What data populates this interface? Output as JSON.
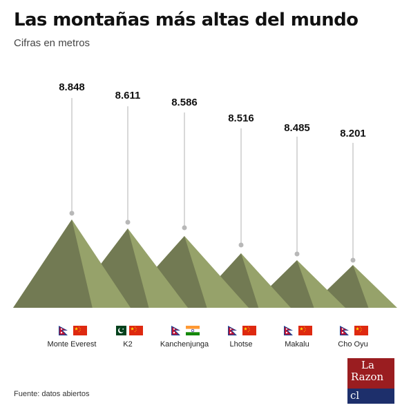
{
  "title": "Las montañas más altas del mundo",
  "subtitle": "Cifras en metros",
  "source": "Fuente: datos abiertos",
  "logo": {
    "line1": "La",
    "line2": "Razon",
    "line3": "cl"
  },
  "colors": {
    "mountain_light": "#96a26a",
    "mountain_dark": "#727a53",
    "stem": "#c8c8c8",
    "dot": "#b8b8b8",
    "logo_red": "#9a1d20",
    "logo_blue": "#1d2f6b"
  },
  "chart_data": {
    "type": "bar",
    "title": "Las montañas más altas del mundo",
    "subtitle": "Cifras en metros",
    "unit": "metros",
    "categories": [
      "Monte Everest",
      "K2",
      "Kanchenjunga",
      "Lhotse",
      "Makalu",
      "Cho Oyu"
    ],
    "values": [
      8848,
      8611,
      8586,
      8516,
      8485,
      8201
    ],
    "value_labels": [
      "8.848",
      "8.611",
      "8.586",
      "8.516",
      "8.485",
      "8.201"
    ],
    "countries": [
      [
        "Nepal",
        "China"
      ],
      [
        "Pakistán",
        "China"
      ],
      [
        "Nepal",
        "India"
      ],
      [
        "Nepal",
        "China"
      ],
      [
        "Nepal",
        "China"
      ],
      [
        "Nepal",
        "China"
      ]
    ]
  }
}
